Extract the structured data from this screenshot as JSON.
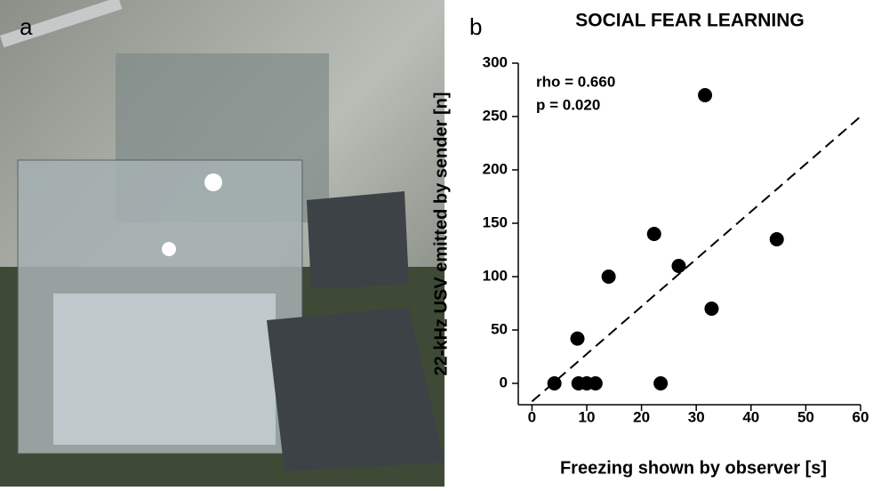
{
  "panel_labels": [
    "a",
    "b"
  ],
  "chart_data": {
    "type": "scatter",
    "title": "SOCIAL FEAR LEARNING",
    "x_label": "Freezing shown by observer [s]",
    "y_label": "22-kHz USV emitted by sender [n]",
    "annotations": [
      "rho = 0.660",
      "p = 0.020"
    ],
    "x": [
      4.1,
      8.5,
      10,
      11.6,
      23.5,
      8.3,
      14,
      22.3,
      26.8,
      31.6,
      32.8,
      44.7
    ],
    "y": [
      0,
      0,
      0,
      0,
      0,
      42,
      100,
      140,
      110,
      270,
      70,
      135
    ],
    "color": "#000000",
    "fit_line": {
      "x": [
        0,
        60
      ],
      "y": [
        -17,
        250
      ]
    },
    "xlim": [
      -2.5,
      60
    ],
    "ylim": [
      -20,
      300
    ],
    "xticks": [
      0,
      10,
      20,
      30,
      40,
      50,
      60
    ],
    "yticks": [
      0,
      50,
      100,
      150,
      200,
      250,
      300
    ]
  }
}
